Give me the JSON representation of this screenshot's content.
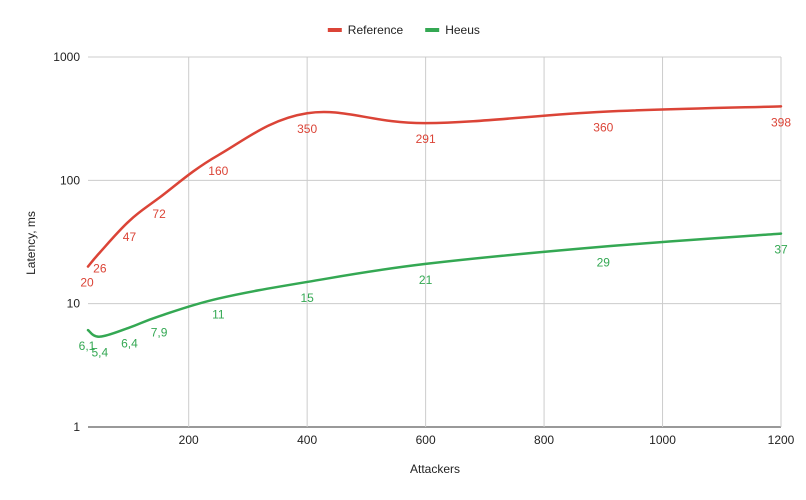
{
  "chart_data": {
    "type": "line",
    "title": "",
    "xlabel": "Attackers",
    "ylabel": "Latency, ms",
    "xlim": [
      30,
      1200
    ],
    "ylim": [
      1,
      1000
    ],
    "y_scale": "log",
    "x_ticks": [
      200,
      400,
      600,
      800,
      1000,
      1200
    ],
    "x_tick_labels": [
      "200",
      "400",
      "600",
      "800",
      "1000",
      "1200"
    ],
    "y_ticks": [
      1,
      10,
      100,
      1000
    ],
    "y_tick_labels": [
      "1",
      "10",
      "100",
      "1000"
    ],
    "grid": true,
    "legend_position": "top-center",
    "series": [
      {
        "name": "Reference",
        "color": "#db4437",
        "x": [
          30,
          50,
          100,
          150,
          250,
          400,
          600,
          900,
          1200
        ],
        "values": [
          20,
          26,
          47,
          72,
          160,
          350,
          291,
          360,
          398
        ],
        "labels": [
          "20",
          "26",
          "47",
          "72",
          "160",
          "350",
          "291",
          "360",
          "398"
        ]
      },
      {
        "name": "Heeus",
        "color": "#34a853",
        "x": [
          30,
          50,
          100,
          150,
          250,
          400,
          600,
          900,
          1200
        ],
        "values": [
          6.1,
          5.4,
          6.4,
          7.9,
          11,
          15,
          21,
          29,
          37
        ],
        "labels": [
          "6,1",
          "5,4",
          "6,4",
          "7,9",
          "11",
          "15",
          "21",
          "29",
          "37"
        ]
      }
    ]
  }
}
